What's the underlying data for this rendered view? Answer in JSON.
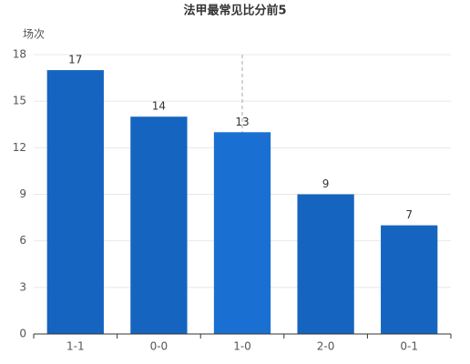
{
  "chart_data": {
    "type": "bar",
    "title": "法甲最常见比分前5",
    "y_label": "场次",
    "categories": [
      "1-1",
      "0-0",
      "1-0",
      "2-0",
      "0-1"
    ],
    "values": [
      17,
      14,
      13,
      9,
      7
    ],
    "colors": [
      "#1565c0",
      "#1565c0",
      "#1a70d2",
      "#1565c0",
      "#1565c0"
    ],
    "ylim": [
      0,
      18
    ],
    "yticks": [
      0,
      3,
      6,
      9,
      12,
      15,
      18
    ],
    "grid": true
  }
}
